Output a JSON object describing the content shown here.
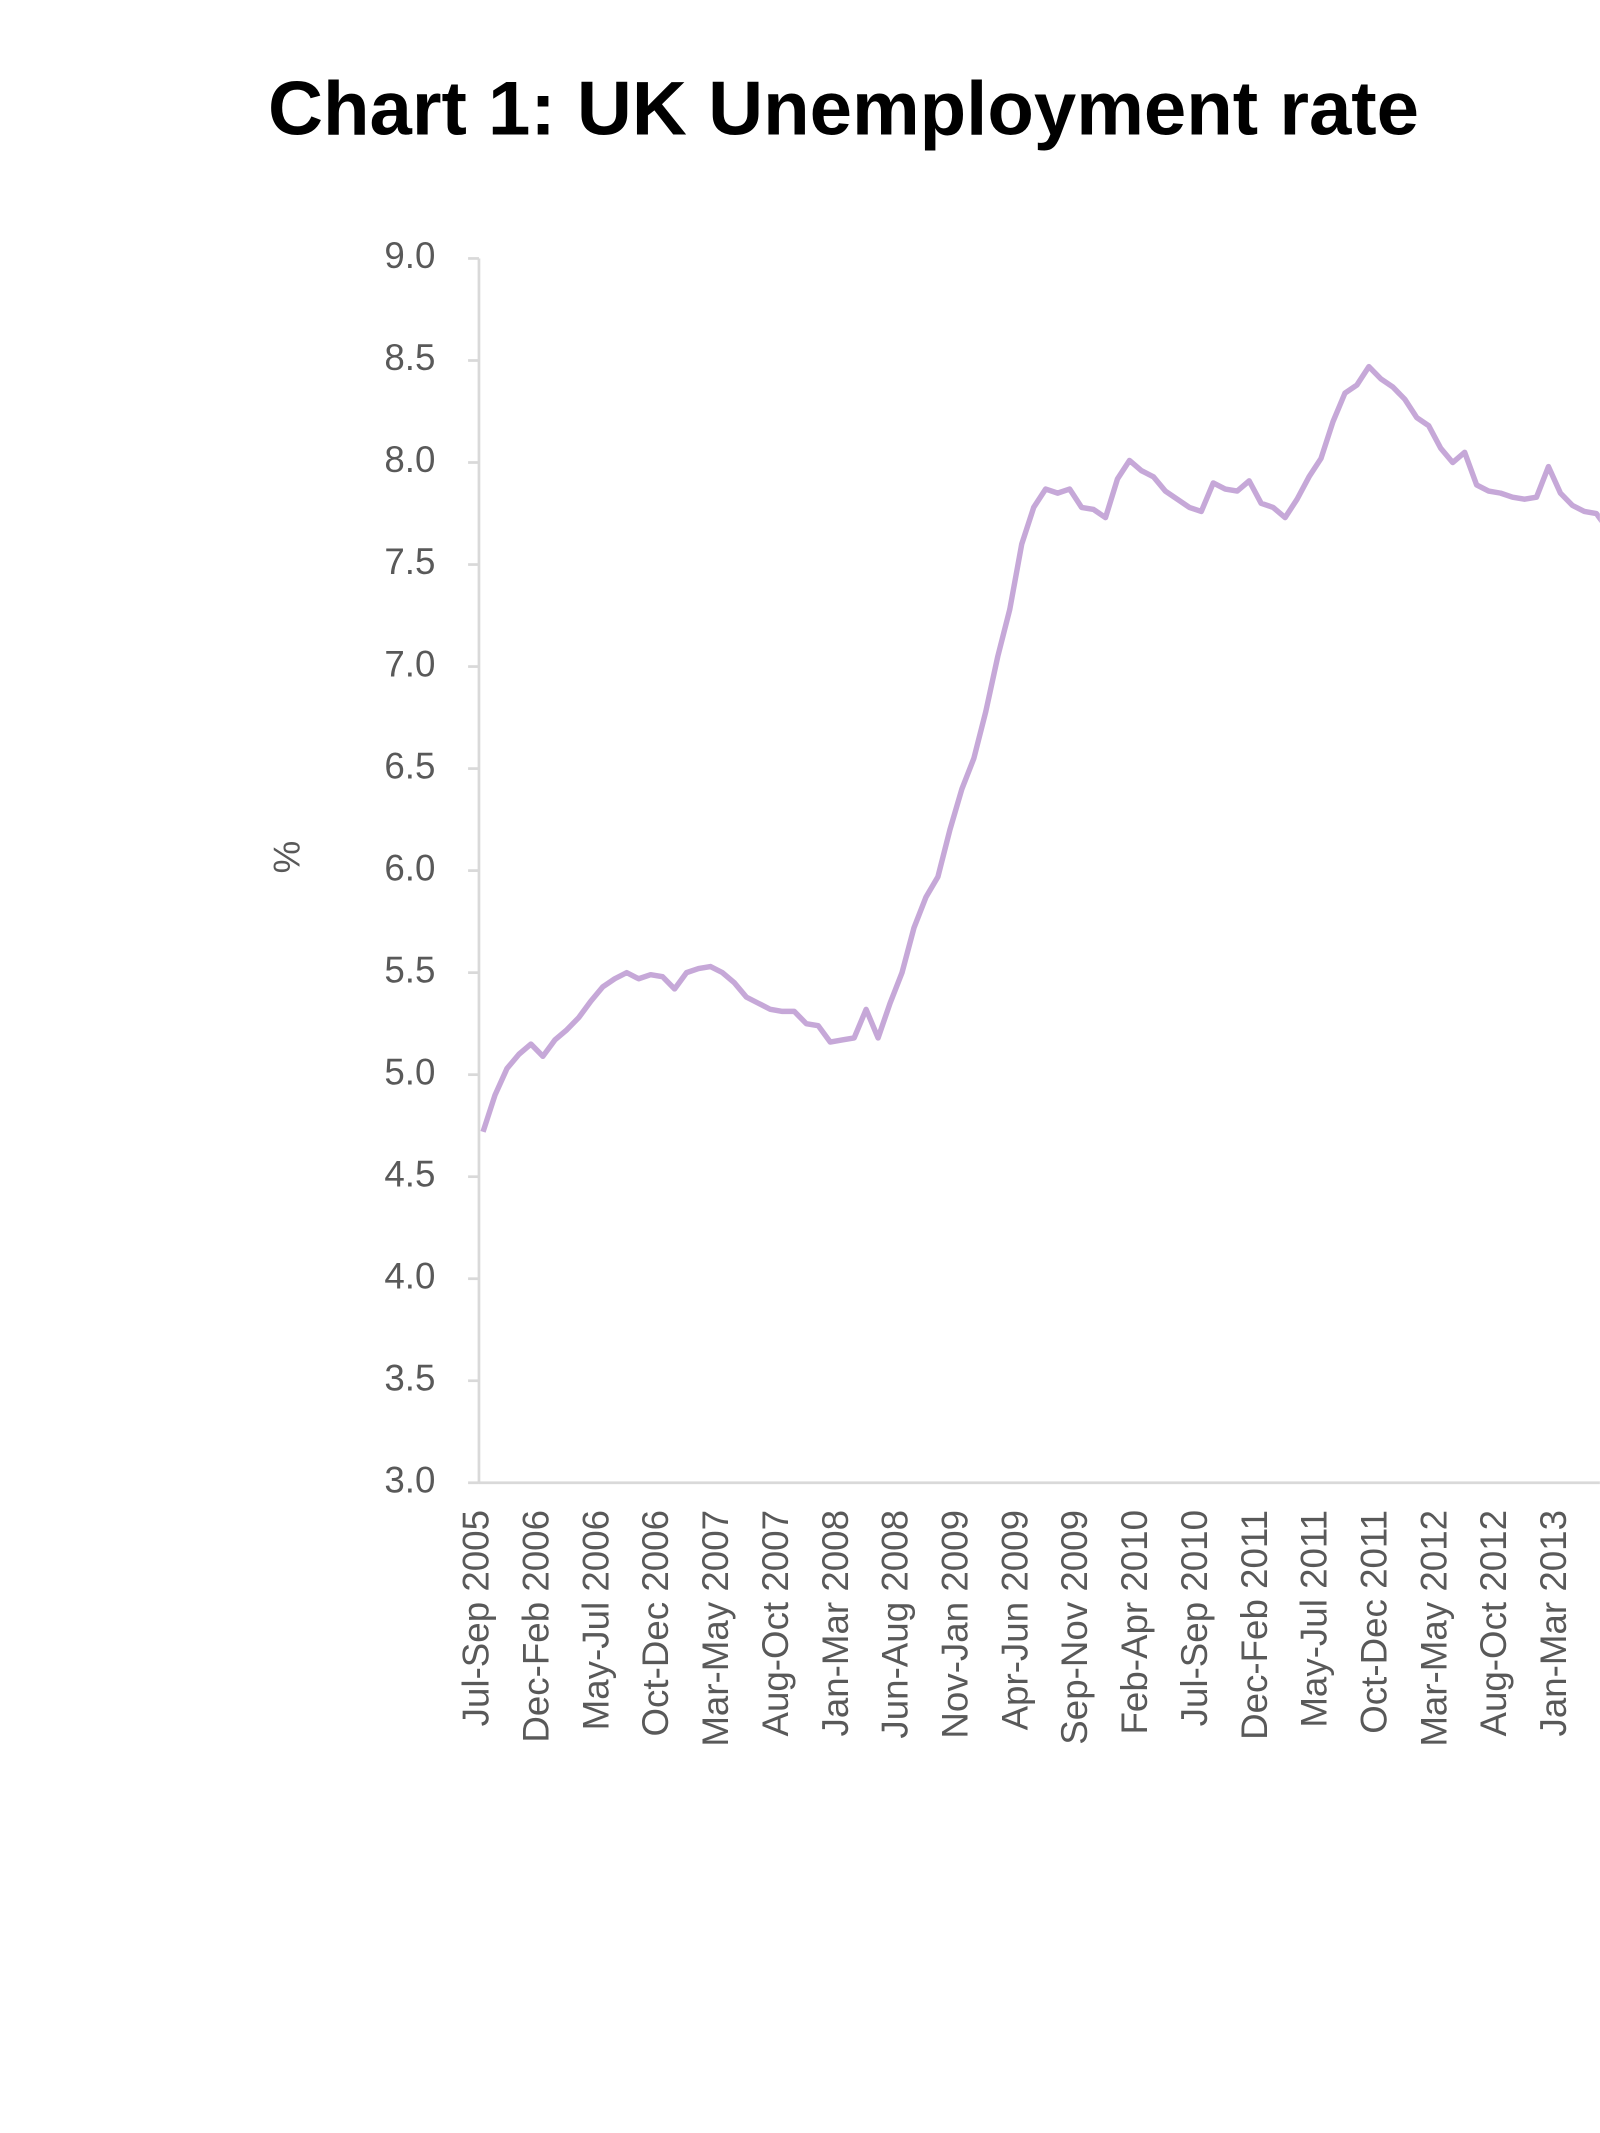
{
  "chart_data": {
    "type": "line",
    "title": "Chart 1: UK Unemployment rate",
    "y_label": "%",
    "categories": [
      "Jul-Sep 2005",
      null,
      null,
      null,
      null,
      "Dec-Feb 2006",
      null,
      null,
      null,
      null,
      "May-Jul 2006",
      null,
      null,
      null,
      null,
      "Oct-Dec 2006",
      null,
      null,
      null,
      null,
      "Mar-May 2007",
      null,
      null,
      null,
      null,
      "Aug-Oct 2007",
      null,
      null,
      null,
      null,
      "Jan-Mar 2008",
      null,
      null,
      null,
      null,
      "Jun-Aug 2008",
      null,
      null,
      null,
      null,
      "Nov-Jan 2009",
      null,
      null,
      null,
      null,
      "Apr-Jun 2009",
      null,
      null,
      null,
      null,
      "Sep-Nov 2009",
      null,
      null,
      null,
      null,
      "Feb-Apr 2010",
      null,
      null,
      null,
      null,
      "Jul-Sep 2010",
      null,
      null,
      null,
      null,
      "Dec-Feb 2011",
      null,
      null,
      null,
      null,
      "May-Jul 2011",
      null,
      null,
      null,
      null,
      "Oct-Dec 2011",
      null,
      null,
      null,
      null,
      "Mar-May 2012",
      null,
      null,
      null,
      null,
      "Aug-Oct 2012",
      null,
      null,
      null,
      null,
      "Jan-Mar 2013",
      null,
      null,
      null,
      null
    ],
    "series": [
      {
        "color": "#c6a8d8",
        "values": [
          4.72,
          4.9,
          5.03,
          5.1,
          5.15,
          5.09,
          5.17,
          5.22,
          5.28,
          5.36,
          5.43,
          5.47,
          5.5,
          5.47,
          5.49,
          5.48,
          5.42,
          5.5,
          5.52,
          5.53,
          5.5,
          5.45,
          5.38,
          5.35,
          5.32,
          5.31,
          5.31,
          5.25,
          5.24,
          5.16,
          5.17,
          5.18,
          5.32,
          5.18,
          5.35,
          5.5,
          5.72,
          5.87,
          5.97,
          6.2,
          6.4,
          6.55,
          6.78,
          7.05,
          7.28,
          7.6,
          7.78,
          7.87,
          7.85,
          7.87,
          7.78,
          7.77,
          7.73,
          7.92,
          8.01,
          7.96,
          7.93,
          7.86,
          7.82,
          7.78,
          7.76,
          7.9,
          7.87,
          7.86,
          7.91,
          7.8,
          7.78,
          7.73,
          7.82,
          7.93,
          8.02,
          8.2,
          8.34,
          8.38,
          8.47,
          8.41,
          8.37,
          8.31,
          8.22,
          8.18,
          8.07,
          8.0,
          8.05,
          7.89,
          7.86,
          7.85,
          7.83,
          7.82,
          7.83,
          7.98,
          7.85,
          7.79,
          7.76,
          7.75,
          7.67
        ]
      }
    ],
    "ylim": [
      3.0,
      9.0
    ],
    "yticks": [
      {
        "value": 3.0,
        "label": "3.0"
      },
      {
        "value": 3.5,
        "label": "3.5"
      },
      {
        "value": 4.0,
        "label": "4.0"
      },
      {
        "value": 4.5,
        "label": "4.5"
      },
      {
        "value": 5.0,
        "label": "5.0"
      },
      {
        "value": 5.5,
        "label": "5.5"
      },
      {
        "value": 6.0,
        "label": "6.0"
      },
      {
        "value": 6.5,
        "label": "6.5"
      },
      {
        "value": 7.0,
        "label": "7.0"
      },
      {
        "value": 7.5,
        "label": "7.5"
      },
      {
        "value": 8.0,
        "label": "8.0"
      },
      {
        "value": 8.5,
        "label": "8.5"
      },
      {
        "value": 9.0,
        "label": "9.0"
      }
    ],
    "grid": false
  }
}
